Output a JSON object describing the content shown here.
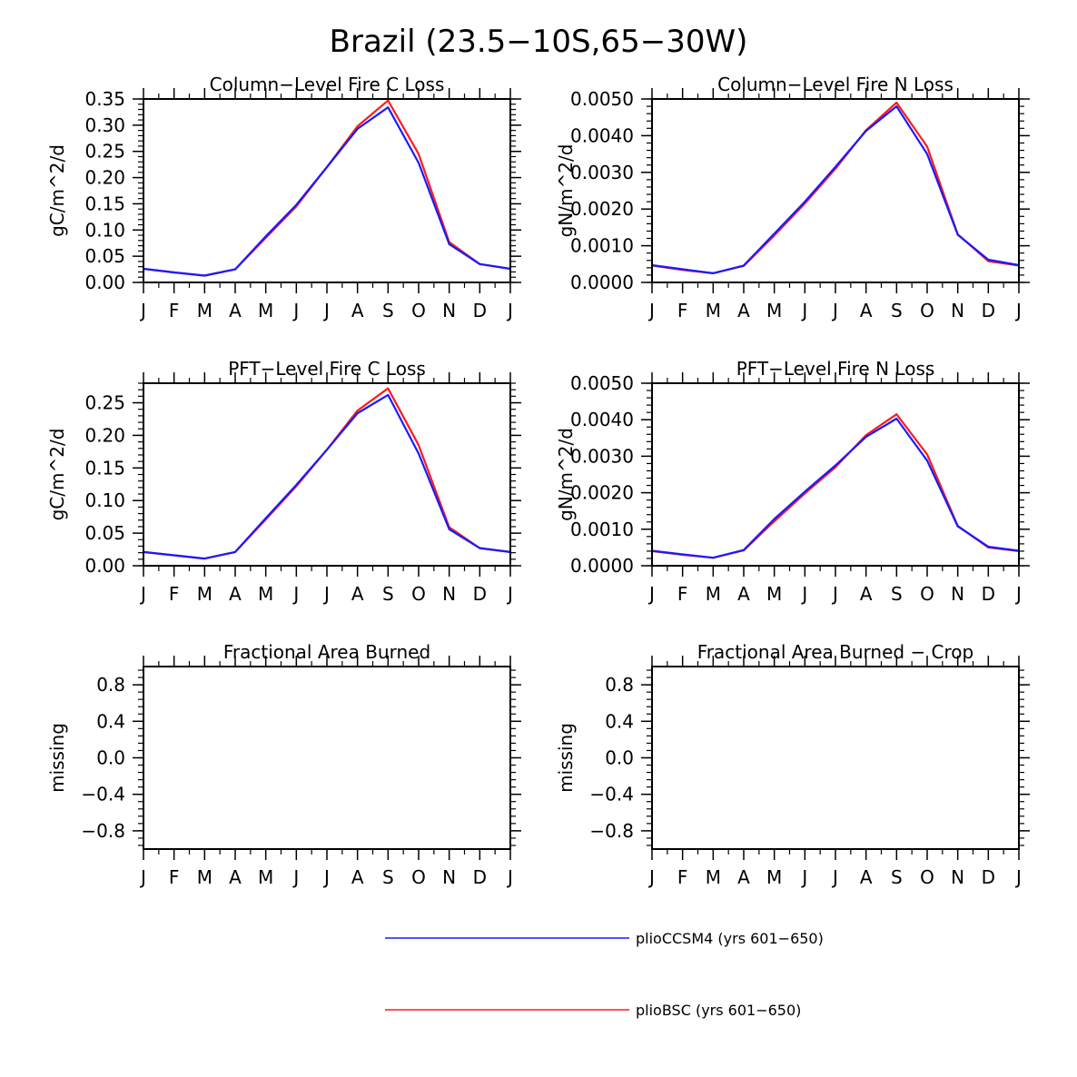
{
  "title": "Brazil (23.5−10S,65−30W)",
  "colors": {
    "series_a": "#1a1aff",
    "series_b": "#ff1a1a"
  },
  "legend": [
    {
      "label": "plioCCSM4 (yrs 601−650)",
      "color": "#1a1aff"
    },
    {
      "label": "plioBSC (yrs 601−650)",
      "color": "#ff1a1a"
    }
  ],
  "chart_data": [
    {
      "type": "line",
      "title": "Column−Level Fire C Loss",
      "ylabel": "gC/m^2/d",
      "categories": [
        "J",
        "F",
        "M",
        "A",
        "M",
        "J",
        "J",
        "A",
        "S",
        "O",
        "N",
        "D",
        "J"
      ],
      "ylim": [
        0,
        0.35
      ],
      "yticks": [
        0,
        0.05,
        0.1,
        0.15,
        0.2,
        0.25,
        0.3,
        0.35
      ],
      "ytick_labels": [
        "0.00",
        "0.05",
        "0.10",
        "0.15",
        "0.20",
        "0.25",
        "0.30",
        "0.35"
      ],
      "series": [
        {
          "name": "plioBSC (yrs 601−650)",
          "color": "#ff1a1a",
          "values": [
            0.026,
            0.019,
            0.013,
            0.025,
            0.085,
            0.145,
            0.22,
            0.298,
            0.347,
            0.245,
            0.077,
            0.035,
            0.026
          ]
        },
        {
          "name": "plioCCSM4 (yrs 601−650)",
          "color": "#1a1aff",
          "values": [
            0.026,
            0.019,
            0.013,
            0.025,
            0.088,
            0.148,
            0.22,
            0.293,
            0.334,
            0.228,
            0.073,
            0.035,
            0.026
          ]
        }
      ]
    },
    {
      "type": "line",
      "title": "Column−Level Fire N Loss",
      "ylabel": "gN/m^2/d",
      "categories": [
        "J",
        "F",
        "M",
        "A",
        "M",
        "J",
        "J",
        "A",
        "S",
        "O",
        "N",
        "D",
        "J"
      ],
      "ylim": [
        0,
        0.005
      ],
      "yticks": [
        0,
        0.001,
        0.002,
        0.003,
        0.004,
        0.005
      ],
      "ytick_labels": [
        "0.0000",
        "0.0010",
        "0.0020",
        "0.0030",
        "0.0040",
        "0.0050"
      ],
      "series": [
        {
          "name": "plioBSC (yrs 601−650)",
          "color": "#ff1a1a",
          "values": [
            0.00046,
            0.00034,
            0.00025,
            0.00045,
            0.00128,
            0.00215,
            0.0031,
            0.00415,
            0.0049,
            0.0037,
            0.00131,
            0.00058,
            0.00046
          ]
        },
        {
          "name": "plioCCSM4 (yrs 601−650)",
          "color": "#1a1aff",
          "values": [
            0.00047,
            0.00036,
            0.00025,
            0.00046,
            0.00133,
            0.0022,
            0.00315,
            0.00413,
            0.0048,
            0.0035,
            0.0013,
            0.00062,
            0.00047
          ]
        }
      ]
    },
    {
      "type": "line",
      "title": "PFT−Level Fire C Loss",
      "ylabel": "gC/m^2/d",
      "categories": [
        "J",
        "F",
        "M",
        "A",
        "M",
        "J",
        "J",
        "A",
        "S",
        "O",
        "N",
        "D",
        "J"
      ],
      "ylim": [
        0,
        0.28
      ],
      "yticks": [
        0,
        0.05,
        0.1,
        0.15,
        0.2,
        0.25
      ],
      "ytick_labels": [
        "0.00",
        "0.05",
        "0.10",
        "0.15",
        "0.20",
        "0.25"
      ],
      "series": [
        {
          "name": "plioBSC (yrs 601−650)",
          "color": "#ff1a1a",
          "values": [
            0.021,
            0.016,
            0.011,
            0.021,
            0.071,
            0.122,
            0.178,
            0.238,
            0.272,
            0.185,
            0.059,
            0.027,
            0.021
          ]
        },
        {
          "name": "plioCCSM4 (yrs 601−650)",
          "color": "#1a1aff",
          "values": [
            0.021,
            0.016,
            0.011,
            0.021,
            0.073,
            0.124,
            0.178,
            0.234,
            0.262,
            0.172,
            0.056,
            0.027,
            0.021
          ]
        }
      ]
    },
    {
      "type": "line",
      "title": "PFT−Level Fire N Loss",
      "ylabel": "gN/m^2/d",
      "categories": [
        "J",
        "F",
        "M",
        "A",
        "M",
        "J",
        "J",
        "A",
        "S",
        "O",
        "N",
        "D",
        "J"
      ],
      "ylim": [
        0,
        0.005
      ],
      "yticks": [
        0,
        0.001,
        0.002,
        0.003,
        0.004,
        0.005
      ],
      "ytick_labels": [
        "0.0000",
        "0.0010",
        "0.0020",
        "0.0030",
        "0.0040",
        "0.0050"
      ],
      "series": [
        {
          "name": "plioBSC (yrs 601−650)",
          "color": "#ff1a1a",
          "values": [
            0.0004,
            0.0003,
            0.00022,
            0.00042,
            0.00122,
            0.00198,
            0.0027,
            0.00358,
            0.00415,
            0.00305,
            0.00109,
            0.0005,
            0.0004
          ]
        },
        {
          "name": "plioCCSM4 (yrs 601−650)",
          "color": "#1a1aff",
          "values": [
            0.00041,
            0.00031,
            0.00022,
            0.00043,
            0.00128,
            0.00203,
            0.00275,
            0.00353,
            0.00403,
            0.00288,
            0.00108,
            0.00052,
            0.00041
          ]
        }
      ]
    },
    {
      "type": "line",
      "title": "Fractional Area Burned",
      "ylabel": "missing",
      "categories": [
        "J",
        "F",
        "M",
        "A",
        "M",
        "J",
        "J",
        "A",
        "S",
        "O",
        "N",
        "D",
        "J"
      ],
      "ylim": [
        -1,
        1
      ],
      "yticks": [
        -0.8,
        -0.4,
        0,
        0.4,
        0.8
      ],
      "ytick_labels": [
        "−0.8",
        "−0.4",
        "0.0",
        "0.4",
        "0.8"
      ],
      "series": []
    },
    {
      "type": "line",
      "title": "Fractional Area Burned − Crop",
      "ylabel": "missing",
      "categories": [
        "J",
        "F",
        "M",
        "A",
        "M",
        "J",
        "J",
        "A",
        "S",
        "O",
        "N",
        "D",
        "J"
      ],
      "ylim": [
        -1,
        1
      ],
      "yticks": [
        -0.8,
        -0.4,
        0,
        0.4,
        0.8
      ],
      "ytick_labels": [
        "−0.8",
        "−0.4",
        "0.0",
        "0.4",
        "0.8"
      ],
      "series": []
    }
  ]
}
